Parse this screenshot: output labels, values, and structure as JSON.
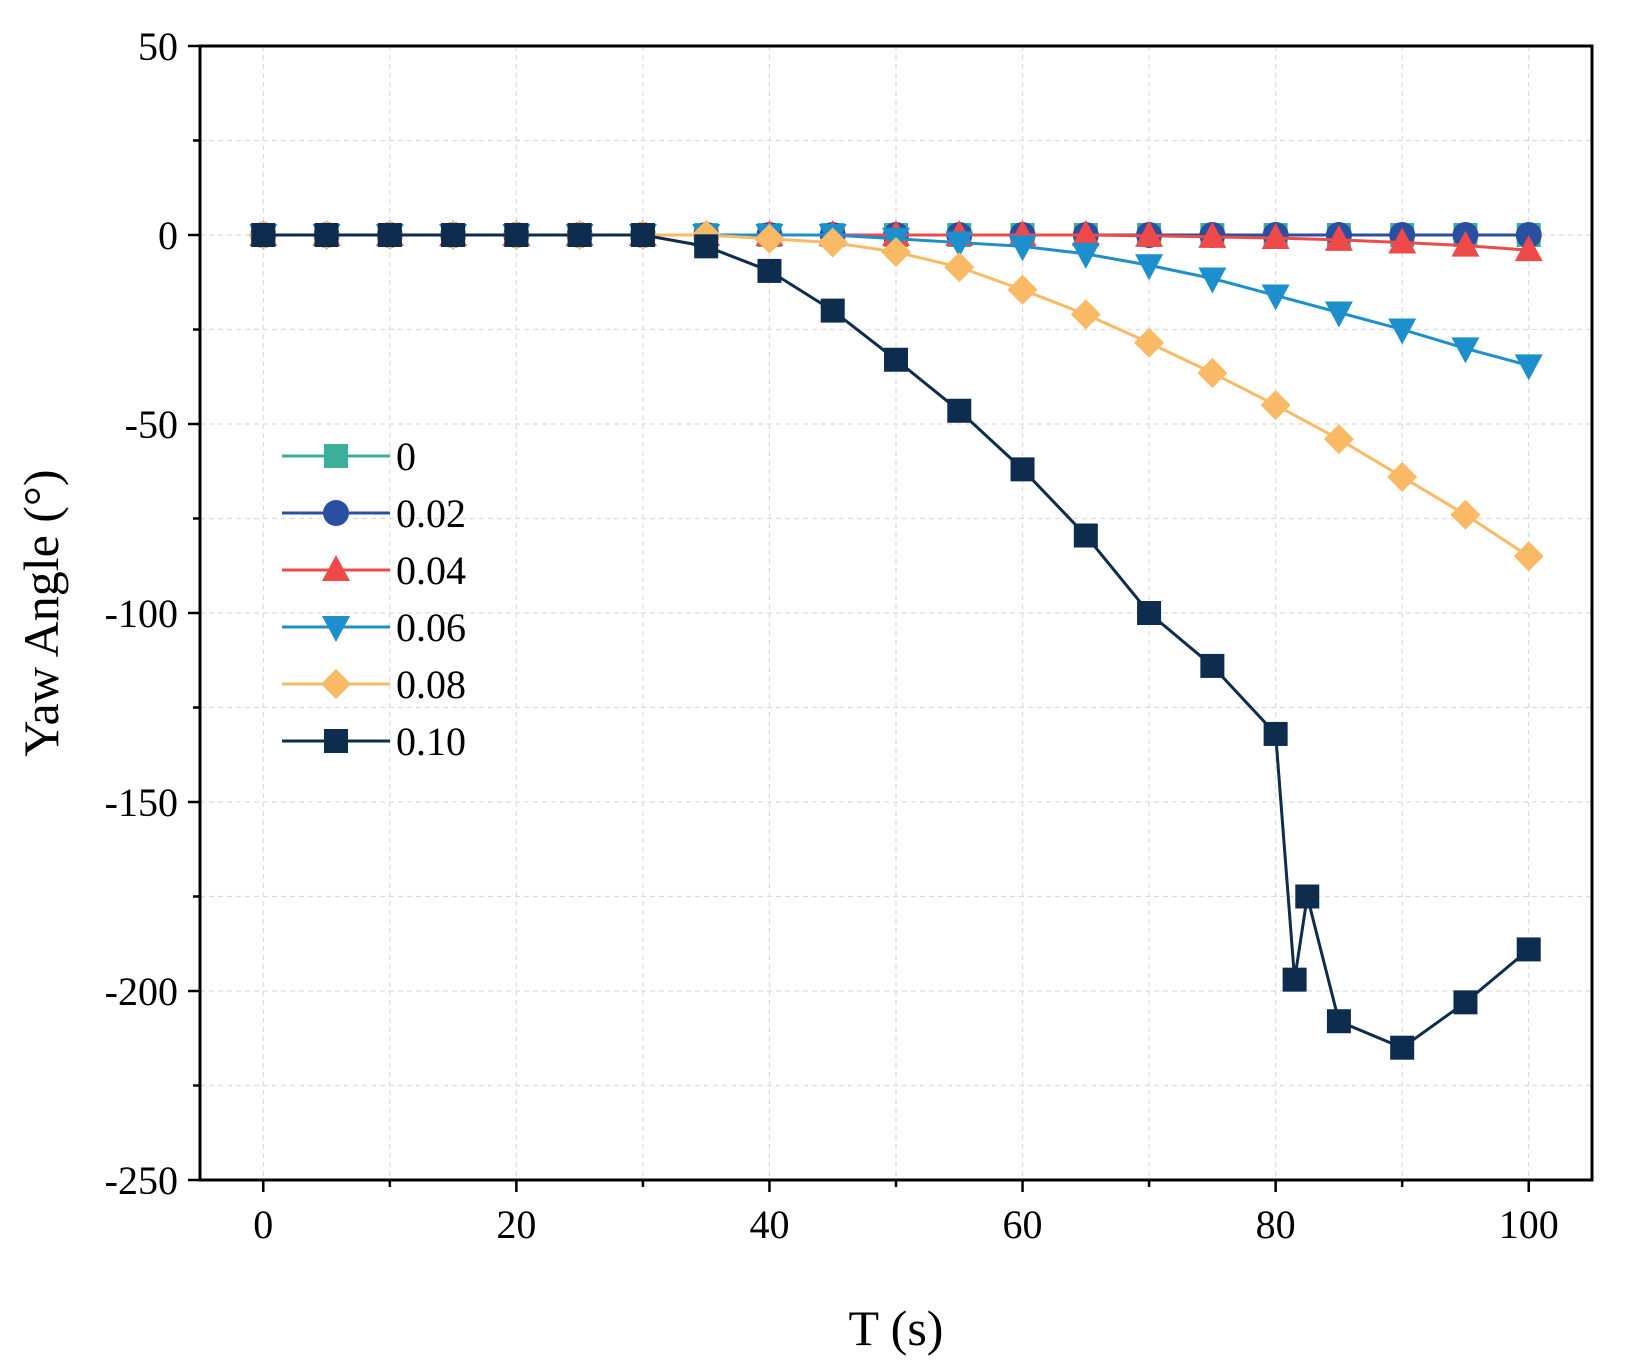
{
  "chart_data": {
    "type": "line",
    "xlabel": "T (s)",
    "ylabel": "Yaw Angle (°)",
    "xlim": [
      -5,
      105
    ],
    "ylim": [
      -250,
      50
    ],
    "xticks": [
      0,
      20,
      40,
      60,
      80,
      100
    ],
    "xtick_labels": [
      "0",
      "20",
      "40",
      "60",
      "80",
      "100"
    ],
    "yticks": [
      50,
      0,
      -50,
      -100,
      -150,
      -200,
      -250
    ],
    "ytick_labels": [
      "50",
      "0",
      "-50",
      "-100",
      "-150",
      "-200",
      "-250"
    ],
    "grid": true,
    "legend_position": "center-left",
    "series": [
      {
        "name": "0",
        "color": "#3aaf9c",
        "marker": "square",
        "x": [
          0,
          5,
          10,
          15,
          20,
          25,
          30,
          35,
          40,
          45,
          50,
          55,
          60,
          65,
          70,
          75,
          80,
          85,
          90,
          95,
          100
        ],
        "y": [
          0,
          0,
          0,
          0,
          0,
          0,
          0,
          0,
          0,
          0,
          0,
          0,
          0,
          0,
          0,
          0,
          0,
          0,
          0,
          0,
          0
        ]
      },
      {
        "name": "0.02",
        "color": "#2a4fa0",
        "marker": "circle",
        "x": [
          0,
          5,
          10,
          15,
          20,
          25,
          30,
          35,
          40,
          45,
          50,
          55,
          60,
          65,
          70,
          75,
          80,
          85,
          90,
          95,
          100
        ],
        "y": [
          0,
          0,
          0,
          0,
          0,
          0,
          0,
          0,
          0,
          0,
          0,
          0,
          0,
          0,
          0,
          0,
          0,
          0,
          0,
          0,
          0
        ]
      },
      {
        "name": "0.04",
        "color": "#ef4a4a",
        "marker": "triangle-up",
        "x": [
          0,
          5,
          10,
          15,
          20,
          25,
          30,
          35,
          40,
          45,
          50,
          55,
          60,
          65,
          70,
          75,
          80,
          85,
          90,
          95,
          100
        ],
        "y": [
          0,
          0,
          0,
          0,
          0,
          0,
          0,
          0,
          0,
          0,
          0,
          0,
          0,
          0,
          -0.2,
          -0.5,
          -0.8,
          -1.3,
          -2,
          -2.8,
          -4
        ]
      },
      {
        "name": "0.06",
        "color": "#1e8fcd",
        "marker": "triangle-down",
        "x": [
          0,
          5,
          10,
          15,
          20,
          25,
          30,
          35,
          40,
          45,
          50,
          55,
          60,
          65,
          70,
          75,
          80,
          85,
          90,
          95,
          100
        ],
        "y": [
          0,
          0,
          0,
          0,
          0,
          0,
          0,
          0,
          0,
          0,
          -1,
          -2,
          -3,
          -5,
          -8,
          -11.5,
          -16,
          -20.5,
          -25,
          -30,
          -34.5
        ]
      },
      {
        "name": "0.08",
        "color": "#f9b965",
        "marker": "diamond",
        "x": [
          0,
          5,
          10,
          15,
          20,
          25,
          30,
          35,
          40,
          45,
          50,
          55,
          60,
          65,
          70,
          75,
          80,
          85,
          90,
          95,
          100
        ],
        "y": [
          0,
          0,
          0,
          0,
          0,
          0,
          0,
          0,
          -1,
          -2,
          -4.5,
          -8.5,
          -14.5,
          -21,
          -28.5,
          -36.5,
          -45,
          -54,
          -64,
          -74,
          -85
        ]
      },
      {
        "name": "0.10",
        "color": "#0d2c4e",
        "marker": "square",
        "x": [
          0,
          5,
          10,
          15,
          20,
          25,
          30,
          35,
          40,
          45,
          50,
          55,
          60,
          65,
          70,
          75,
          80,
          81.5,
          82.5,
          85,
          90,
          95,
          100
        ],
        "y": [
          0,
          0,
          0,
          0,
          0,
          0,
          0,
          -3,
          -9.5,
          -20,
          -33,
          -46.5,
          -62,
          -79.5,
          -100,
          -114,
          -132,
          -197,
          -175,
          -208,
          -215,
          -203,
          -189
        ]
      }
    ]
  }
}
